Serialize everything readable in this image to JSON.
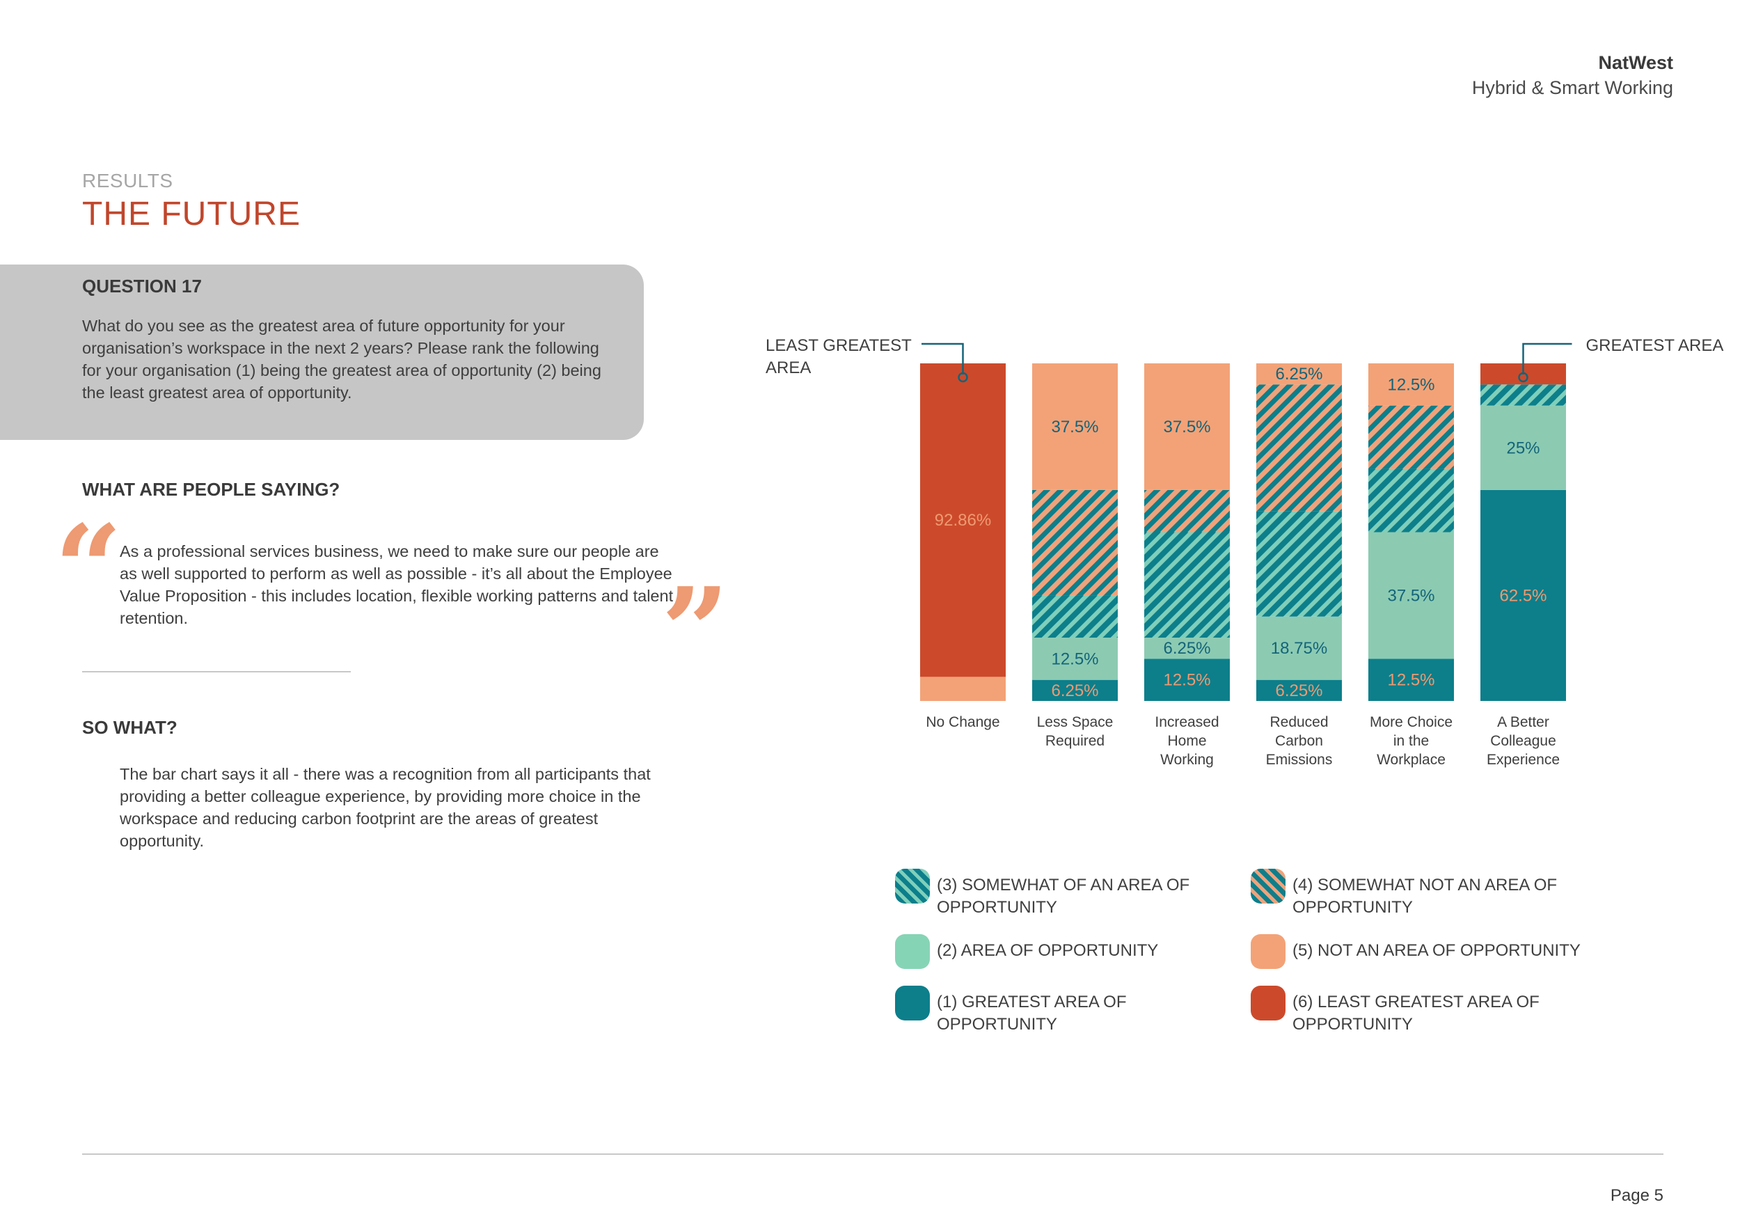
{
  "header": {
    "brand": "NatWest",
    "subtitle": "Hybrid & Smart Working"
  },
  "section": {
    "eyebrow": "RESULTS",
    "title": "THE FUTURE"
  },
  "question": {
    "title": "QUESTION 17",
    "text": "What do you see as the greatest area of future opportunity for your organisation’s workspace in the next 2 years? Please rank the following for your organisation (1) being the greatest area of opportunity (2) being the least greatest area of opportunity."
  },
  "people": {
    "heading": "WHAT ARE PEOPLE SAYING?",
    "quote": "As a professional services business, we need to make sure our people are as well supported to perform as well as possible - it’s all about the Employee Value Proposition - this includes location, flexible working patterns and talent retention.",
    "open_mark": "“",
    "close_mark": "”"
  },
  "sowhat": {
    "heading": "SO WHAT?",
    "text": "The bar chart says it all - there was a recognition from all participants that providing a better colleague experience, by providing more choice in the workspace and reducing carbon footprint are the areas of greatest opportunity."
  },
  "footer": {
    "page": "Page 5"
  },
  "colors": {
    "greatest": "#0c7f8b",
    "area": "#8ccbb2",
    "somewhat": "#0c7f8b",
    "somewhat_light": "#7fcfba",
    "somewhat_not_light": "#f0a27b",
    "not_area": "#f3a277",
    "least": "#cc4a2b",
    "label_dark": "#14647a",
    "label_orange": "#ee9a72",
    "title_red": "#c0462c"
  },
  "chart_data": {
    "type": "bar",
    "stacked": true,
    "ylim": [
      0,
      100
    ],
    "categories": [
      [
        "No Change"
      ],
      [
        "Less Space",
        "Required"
      ],
      [
        "Increased",
        "Home",
        "Working"
      ],
      [
        "Reduced",
        "Carbon",
        "Emissions"
      ],
      [
        "More Choice",
        "in the",
        "Workplace"
      ],
      [
        "A Better",
        "Colleague",
        "Experience"
      ]
    ],
    "series": [
      {
        "key": "s1",
        "values": [
          0,
          6.25,
          12.5,
          6.25,
          12.5,
          62.5
        ],
        "labels": [
          "",
          "6.25%",
          "12.5%",
          "6.25%",
          "12.5%",
          "62.5%"
        ]
      },
      {
        "key": "s2",
        "values": [
          0,
          12.5,
          6.25,
          18.75,
          37.5,
          25
        ],
        "labels": [
          "",
          "12.5%",
          "6.25%",
          "18.75%",
          "37.5%",
          "25%"
        ]
      },
      {
        "key": "s3",
        "values": [
          0,
          12.5,
          31.25,
          31.25,
          18.75,
          6.25
        ],
        "labels": [
          "",
          "",
          "",
          "",
          "",
          ""
        ]
      },
      {
        "key": "s4",
        "values": [
          0,
          31.25,
          12.5,
          37.5,
          18.75,
          0
        ],
        "labels": [
          "",
          "",
          "",
          "",
          "",
          ""
        ]
      },
      {
        "key": "s5",
        "values": [
          7.14,
          37.5,
          37.5,
          6.25,
          12.5,
          0
        ],
        "labels": [
          "",
          "37.5%",
          "37.5%",
          "6.25%",
          "12.5%",
          ""
        ]
      },
      {
        "key": "s6",
        "values": [
          92.86,
          0,
          0,
          0,
          0,
          6.25
        ],
        "labels": [
          "92.86%",
          "",
          "",
          "",
          "",
          ""
        ]
      }
    ],
    "annotations": [
      {
        "text": [
          "LEAST GREATEST",
          "AREA"
        ],
        "side": "left",
        "category": 0
      },
      {
        "text": [
          "GREATEST AREA"
        ],
        "side": "right",
        "category": 5
      }
    ],
    "legend": [
      {
        "key": "s3",
        "label": "(3) SOMEWHAT OF AN AREA OF OPPORTUNITY"
      },
      {
        "key": "s4",
        "label": "(4) SOMEWHAT NOT AN AREA OF OPPORTUNITY"
      },
      {
        "key": "s2",
        "label": "(2) AREA OF OPPORTUNITY"
      },
      {
        "key": "s5",
        "label": "(5) NOT AN AREA OF OPPORTUNITY"
      },
      {
        "key": "s1",
        "label": "(1) GREATEST AREA OF OPPORTUNITY"
      },
      {
        "key": "s6",
        "label": "(6) LEAST GREATEST AREA OF OPPORTUNITY"
      }
    ]
  }
}
